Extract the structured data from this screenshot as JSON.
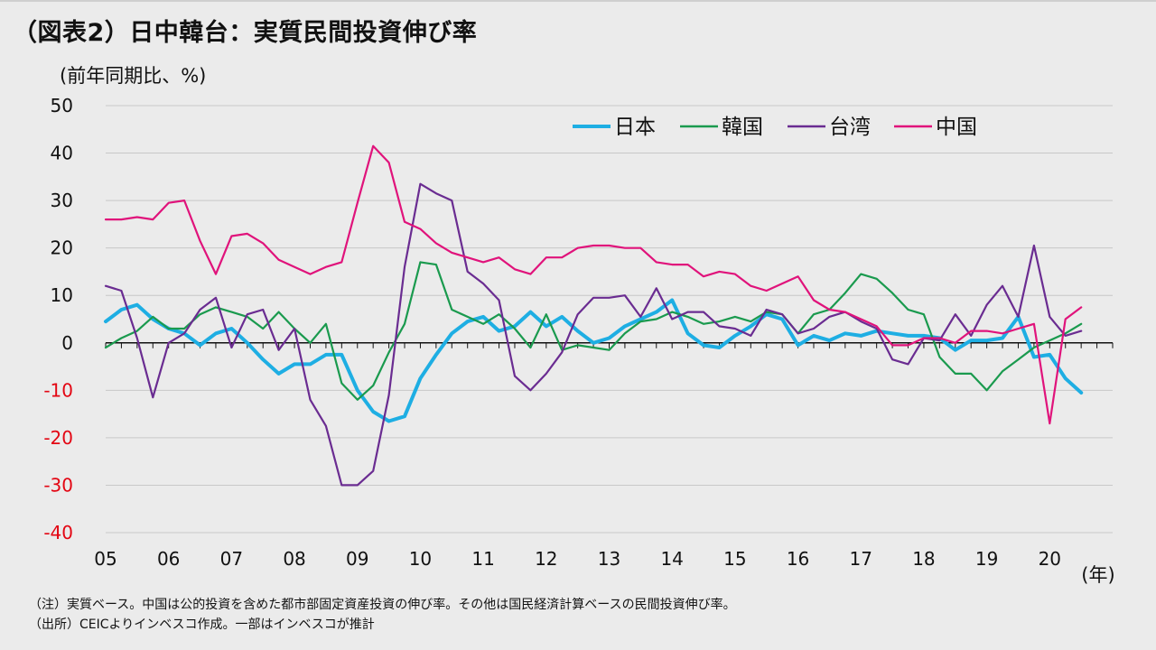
{
  "header": {
    "title": "（図表2）日中韓台：実質民間投資伸び率",
    "unit": "(前年同期比、%)"
  },
  "footer": {
    "note": "（注）実質ベース。中国は公的投資を含めた都市部固定資産投資の伸び率。その他は国民経済計算ベースの民間投資伸び率。",
    "source": "（出所）CEICよりインベスコ作成。一部はインベスコが推計"
  },
  "chart_data": {
    "type": "line",
    "title": "（図表2）日中韓台：実質民間投資伸び率",
    "ylabel": "(前年同期比、%)",
    "xunit": "(年)",
    "ylim": [
      -40,
      50
    ],
    "yticks": [
      50,
      40,
      30,
      20,
      10,
      0,
      -10,
      -20,
      -30,
      -40
    ],
    "negative_tick_color": "#e30613",
    "xlim": [
      2005,
      2021
    ],
    "x_tick_labels": [
      "05",
      "06",
      "07",
      "08",
      "09",
      "10",
      "11",
      "12",
      "13",
      "14",
      "15",
      "16",
      "17",
      "18",
      "19",
      "20"
    ],
    "x_period": "quarterly, 2005Q1–2020Q3",
    "legend_position": "top-right, inside plot",
    "grid": "horizontal",
    "series": [
      {
        "name": "日本",
        "color": "#1eaee3",
        "values": [
          4.5,
          7,
          8,
          5,
          3,
          2,
          -0.5,
          2,
          3,
          0,
          -3.5,
          -6.5,
          -4.5,
          -4.5,
          -2.5,
          -2.5,
          -10,
          -14.5,
          -16.5,
          -15.5,
          -7.5,
          -2.5,
          2,
          4.5,
          5.5,
          2.5,
          3.5,
          6.5,
          3.5,
          5.5,
          2.5,
          0,
          1,
          3.5,
          5,
          6.5,
          9,
          2,
          -0.5,
          -1,
          1.5,
          3.5,
          6,
          5,
          -0.5,
          1.5,
          0.5,
          2,
          1.5,
          2.5,
          2,
          1.5,
          1.5,
          1,
          -1.5,
          0.5,
          0.5,
          1,
          5.5,
          -3,
          -2.5,
          -7.5,
          -10.5
        ]
      },
      {
        "name": "韓国",
        "color": "#1a9a4e",
        "values": [
          -1,
          1,
          2.5,
          5.5,
          3,
          3,
          6,
          7.5,
          6.5,
          5.5,
          3,
          6.5,
          3,
          0,
          4,
          -8.5,
          -12,
          -9,
          -2,
          4,
          17,
          16.5,
          7,
          5.5,
          4,
          6,
          3,
          -1,
          6,
          -1.5,
          -0.5,
          -1,
          -1.5,
          2,
          4.5,
          5,
          6.5,
          5.5,
          4,
          4.5,
          5.5,
          4.5,
          6.5,
          6,
          2,
          6,
          7,
          10.5,
          14.5,
          13.5,
          10.5,
          7,
          6,
          -3,
          -6.5,
          -6.5,
          -10,
          -6,
          -3.5,
          -1,
          0.5,
          2,
          4
        ]
      },
      {
        "name": "台湾",
        "color": "#6a2c91",
        "values": [
          12,
          11,
          1,
          -11.5,
          0,
          2,
          7,
          9.5,
          -1,
          6,
          7,
          -1.5,
          3,
          -12,
          -17.5,
          -30,
          -30,
          -27,
          -11,
          16,
          33.5,
          31.5,
          30,
          15,
          12.5,
          9,
          -7,
          -10,
          -6.5,
          -2,
          6,
          9.5,
          9.5,
          10,
          5.5,
          11.5,
          5,
          6.5,
          6.5,
          3.5,
          3,
          1.5,
          7,
          6,
          2,
          3,
          5.5,
          6.5,
          4.5,
          3,
          -3.5,
          -4.5,
          1,
          0.5,
          6,
          1.5,
          8,
          12,
          5.5,
          20.5,
          5.5,
          1.5,
          2.5
        ]
      },
      {
        "name": "中国",
        "color": "#e0137b",
        "values": [
          26,
          26,
          26.5,
          26,
          29.5,
          30,
          21.5,
          14.5,
          22.5,
          23,
          21,
          17.5,
          16,
          14.5,
          16,
          17,
          29.5,
          41.5,
          38,
          25.5,
          24,
          21,
          19,
          18,
          17,
          18,
          15.5,
          14.5,
          18,
          18,
          20,
          20.5,
          20.5,
          20,
          20,
          17,
          16.5,
          16.5,
          14,
          15,
          14.5,
          12,
          11,
          12.5,
          14,
          9,
          7,
          6.5,
          5,
          3.5,
          -0.5,
          -0.5,
          1,
          1,
          0,
          2.5,
          2.5,
          2,
          3,
          4,
          -17,
          5,
          7.5
        ]
      }
    ]
  }
}
